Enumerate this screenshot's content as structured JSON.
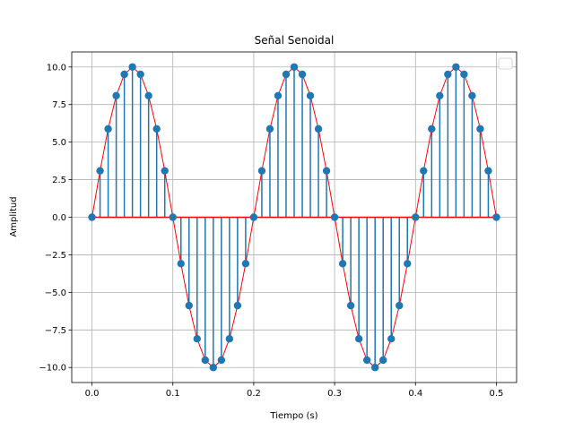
{
  "chart_data": {
    "type": "line",
    "title": "Señal Senoidal",
    "xlabel": "Tiempo (s)",
    "ylabel": "Amplitud",
    "xlim": [
      -0.025,
      0.525
    ],
    "ylim": [
      -11.0,
      11.0
    ],
    "x_ticks": [
      0.0,
      0.1,
      0.2,
      0.3,
      0.4,
      0.5
    ],
    "x_tick_labels": [
      "0.0",
      "0.1",
      "0.2",
      "0.3",
      "0.4",
      "0.5"
    ],
    "y_ticks": [
      10.0,
      7.5,
      5.0,
      2.5,
      0.0,
      -2.5,
      -5.0,
      -7.5,
      -10.0
    ],
    "y_tick_labels": [
      "10.0",
      "7.5",
      "5.0",
      "2.5",
      "0.0",
      "−2.5",
      "−5.0",
      "−7.5",
      "−10.0"
    ],
    "grid": true,
    "legend": "top-right",
    "x": [
      0.0,
      0.01,
      0.02,
      0.03,
      0.04,
      0.05,
      0.06,
      0.07,
      0.08,
      0.09,
      0.1,
      0.11,
      0.12,
      0.13,
      0.14,
      0.15,
      0.16,
      0.17,
      0.18,
      0.19,
      0.2,
      0.21,
      0.22,
      0.23,
      0.24,
      0.25,
      0.26,
      0.27,
      0.28,
      0.29,
      0.3,
      0.31,
      0.32,
      0.33,
      0.34,
      0.35,
      0.36,
      0.37,
      0.38,
      0.39,
      0.4,
      0.41,
      0.42,
      0.43,
      0.44,
      0.45,
      0.46,
      0.47,
      0.48,
      0.49,
      0.5
    ],
    "series": [
      {
        "style": "stem",
        "color": "#1f77b4",
        "values": [
          0.0,
          3.09,
          5.88,
          8.09,
          9.51,
          10.0,
          9.51,
          8.09,
          5.88,
          3.09,
          0.0,
          -3.09,
          -5.88,
          -8.09,
          -9.51,
          -10.0,
          -9.51,
          -8.09,
          -5.88,
          -3.09,
          0.0,
          3.09,
          5.88,
          8.09,
          9.51,
          10.0,
          9.51,
          8.09,
          5.88,
          3.09,
          0.0,
          -3.09,
          -5.88,
          -8.09,
          -9.51,
          -10.0,
          -9.51,
          -8.09,
          -5.88,
          -3.09,
          0.0,
          3.09,
          5.88,
          8.09,
          9.51,
          10.0,
          9.51,
          8.09,
          5.88,
          3.09,
          0.0
        ]
      },
      {
        "style": "line",
        "color": "#ff0000",
        "values": [
          0.0,
          3.09,
          5.88,
          8.09,
          9.51,
          10.0,
          9.51,
          8.09,
          5.88,
          3.09,
          0.0,
          -3.09,
          -5.88,
          -8.09,
          -9.51,
          -10.0,
          -9.51,
          -8.09,
          -5.88,
          -3.09,
          0.0,
          3.09,
          5.88,
          8.09,
          9.51,
          10.0,
          9.51,
          8.09,
          5.88,
          3.09,
          0.0,
          -3.09,
          -5.88,
          -8.09,
          -9.51,
          -10.0,
          -9.51,
          -8.09,
          -5.88,
          -3.09,
          0.0,
          3.09,
          5.88,
          8.09,
          9.51,
          10.0,
          9.51,
          8.09,
          5.88,
          3.09,
          0.0
        ]
      }
    ],
    "baseline": {
      "y": 0.0,
      "color": "#ff0000"
    }
  }
}
